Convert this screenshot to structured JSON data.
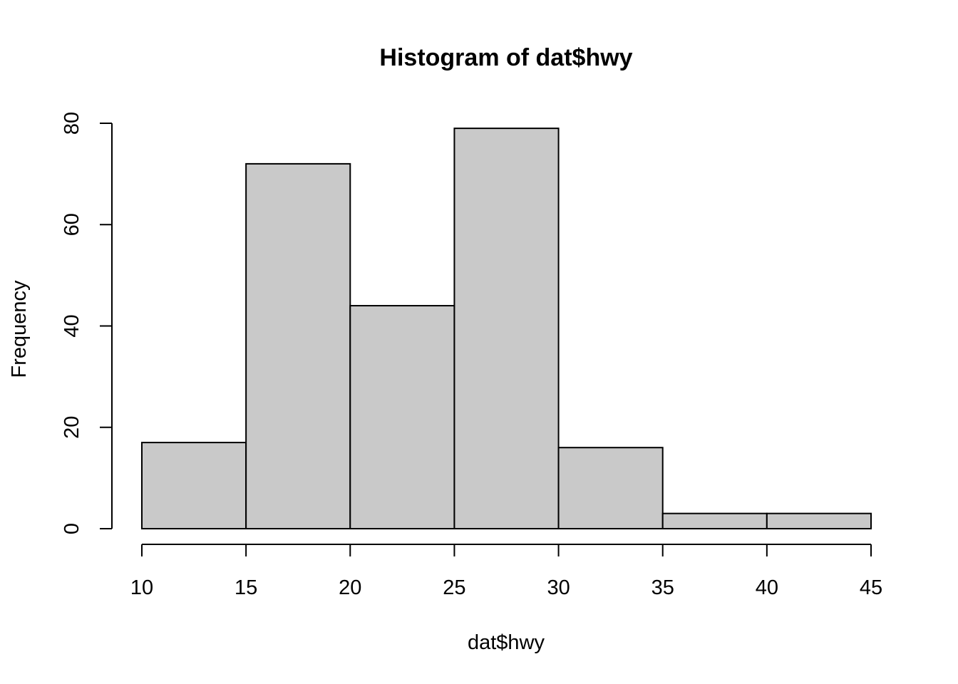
{
  "chart_data": {
    "type": "bar",
    "title": "Histogram of dat$hwy",
    "xlabel": "dat$hwy",
    "ylabel": "Frequency",
    "bins": [
      {
        "start": 10,
        "end": 15,
        "count": 17
      },
      {
        "start": 15,
        "end": 20,
        "count": 72
      },
      {
        "start": 20,
        "end": 25,
        "count": 44
      },
      {
        "start": 25,
        "end": 30,
        "count": 79
      },
      {
        "start": 30,
        "end": 35,
        "count": 16
      },
      {
        "start": 35,
        "end": 40,
        "count": 3
      },
      {
        "start": 40,
        "end": 45,
        "count": 3
      }
    ],
    "xlim": [
      10,
      45
    ],
    "ylim": [
      0,
      80
    ],
    "x_ticks": [
      10,
      15,
      20,
      25,
      30,
      35,
      40,
      45
    ],
    "y_ticks": [
      0,
      20,
      40,
      60,
      80
    ],
    "bar_color": "#c9c9c9",
    "grid": false,
    "legend": "none"
  }
}
